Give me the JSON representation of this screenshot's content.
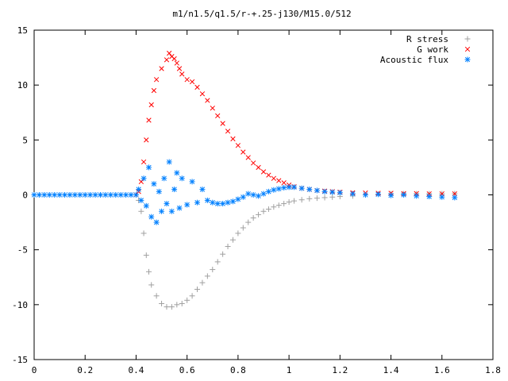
{
  "chart_data": {
    "type": "scatter",
    "title": "m1/n1.5/q1.5/r-+.25-j130/M15.0/512",
    "xlabel": "",
    "ylabel": "",
    "xlim": [
      0,
      1.8
    ],
    "ylim": [
      -15,
      15
    ],
    "xticks": [
      0,
      0.2,
      0.4,
      0.6,
      0.8,
      1,
      1.2,
      1.4,
      1.6,
      1.8
    ],
    "xtick_labels": [
      "0",
      "0.2",
      "0.4",
      "0.6",
      "0.8",
      "1",
      "1.2",
      "1.4",
      "1.6",
      "1.8"
    ],
    "yticks": [
      -15,
      -10,
      -5,
      0,
      5,
      10,
      15
    ],
    "ytick_labels": [
      "-15",
      "-10",
      "-5",
      "0",
      "5",
      "10",
      "15"
    ],
    "grid": false,
    "legend_position": "top-right",
    "series": [
      {
        "name": "R stress",
        "marker": "plus",
        "color": "#a0a0a0",
        "points": [
          [
            0.4,
            0.0
          ],
          [
            0.41,
            -0.5
          ],
          [
            0.42,
            -1.5
          ],
          [
            0.43,
            -3.5
          ],
          [
            0.44,
            -5.5
          ],
          [
            0.45,
            -7.0
          ],
          [
            0.46,
            -8.2
          ],
          [
            0.48,
            -9.2
          ],
          [
            0.5,
            -9.9
          ],
          [
            0.52,
            -10.2
          ],
          [
            0.54,
            -10.2
          ],
          [
            0.56,
            -10.0
          ],
          [
            0.58,
            -9.9
          ],
          [
            0.6,
            -9.6
          ],
          [
            0.62,
            -9.2
          ],
          [
            0.64,
            -8.6
          ],
          [
            0.66,
            -8.0
          ],
          [
            0.68,
            -7.4
          ],
          [
            0.7,
            -6.8
          ],
          [
            0.72,
            -6.1
          ],
          [
            0.74,
            -5.4
          ],
          [
            0.76,
            -4.7
          ],
          [
            0.78,
            -4.1
          ],
          [
            0.8,
            -3.5
          ],
          [
            0.82,
            -3.0
          ],
          [
            0.84,
            -2.5
          ],
          [
            0.86,
            -2.1
          ],
          [
            0.88,
            -1.8
          ],
          [
            0.9,
            -1.5
          ],
          [
            0.92,
            -1.3
          ],
          [
            0.94,
            -1.1
          ],
          [
            0.96,
            -0.95
          ],
          [
            0.98,
            -0.8
          ],
          [
            1.0,
            -0.65
          ],
          [
            1.02,
            -0.55
          ],
          [
            1.05,
            -0.45
          ],
          [
            1.08,
            -0.35
          ],
          [
            1.11,
            -0.3
          ],
          [
            1.14,
            -0.25
          ],
          [
            1.17,
            -0.2
          ],
          [
            1.2,
            -0.15
          ],
          [
            1.25,
            -0.1
          ],
          [
            1.3,
            0.0
          ],
          [
            1.35,
            0.05
          ],
          [
            1.4,
            0.1
          ],
          [
            1.45,
            0.1
          ],
          [
            1.5,
            0.1
          ],
          [
            1.55,
            0.1
          ],
          [
            1.6,
            0.1
          ],
          [
            1.65,
            0.1
          ]
        ]
      },
      {
        "name": "G work",
        "marker": "cross",
        "color": "#ff0000",
        "points": [
          [
            0.4,
            0.0
          ],
          [
            0.41,
            0.3
          ],
          [
            0.42,
            1.2
          ],
          [
            0.43,
            3.0
          ],
          [
            0.44,
            5.0
          ],
          [
            0.45,
            6.8
          ],
          [
            0.46,
            8.2
          ],
          [
            0.47,
            9.5
          ],
          [
            0.48,
            10.5
          ],
          [
            0.5,
            11.5
          ],
          [
            0.52,
            12.3
          ],
          [
            0.53,
            12.9
          ],
          [
            0.54,
            12.6
          ],
          [
            0.55,
            12.4
          ],
          [
            0.56,
            12.0
          ],
          [
            0.57,
            11.5
          ],
          [
            0.58,
            11.0
          ],
          [
            0.6,
            10.5
          ],
          [
            0.62,
            10.3
          ],
          [
            0.64,
            9.8
          ],
          [
            0.66,
            9.2
          ],
          [
            0.68,
            8.6
          ],
          [
            0.7,
            7.9
          ],
          [
            0.72,
            7.2
          ],
          [
            0.74,
            6.5
          ],
          [
            0.76,
            5.8
          ],
          [
            0.78,
            5.1
          ],
          [
            0.8,
            4.5
          ],
          [
            0.82,
            3.9
          ],
          [
            0.84,
            3.4
          ],
          [
            0.86,
            2.9
          ],
          [
            0.88,
            2.5
          ],
          [
            0.9,
            2.1
          ],
          [
            0.92,
            1.8
          ],
          [
            0.94,
            1.5
          ],
          [
            0.96,
            1.3
          ],
          [
            0.98,
            1.1
          ],
          [
            1.0,
            0.9
          ],
          [
            1.02,
            0.75
          ],
          [
            1.05,
            0.6
          ],
          [
            1.08,
            0.5
          ],
          [
            1.11,
            0.4
          ],
          [
            1.14,
            0.35
          ],
          [
            1.17,
            0.3
          ],
          [
            1.2,
            0.25
          ],
          [
            1.25,
            0.2
          ],
          [
            1.3,
            0.18
          ],
          [
            1.35,
            0.15
          ],
          [
            1.4,
            0.15
          ],
          [
            1.45,
            0.12
          ],
          [
            1.5,
            0.12
          ],
          [
            1.55,
            0.1
          ],
          [
            1.6,
            0.1
          ],
          [
            1.65,
            0.1
          ]
        ]
      },
      {
        "name": "Acoustic flux",
        "marker": "star",
        "color": "#0080ff",
        "points": [
          [
            0.0,
            0.0
          ],
          [
            0.02,
            0.0
          ],
          [
            0.04,
            0.0
          ],
          [
            0.06,
            0.0
          ],
          [
            0.08,
            0.0
          ],
          [
            0.1,
            0.0
          ],
          [
            0.12,
            0.0
          ],
          [
            0.14,
            0.0
          ],
          [
            0.16,
            0.0
          ],
          [
            0.18,
            0.0
          ],
          [
            0.2,
            0.0
          ],
          [
            0.22,
            0.0
          ],
          [
            0.24,
            0.0
          ],
          [
            0.26,
            0.0
          ],
          [
            0.28,
            0.0
          ],
          [
            0.3,
            0.0
          ],
          [
            0.32,
            0.0
          ],
          [
            0.34,
            0.0
          ],
          [
            0.36,
            0.0
          ],
          [
            0.38,
            0.0
          ],
          [
            0.4,
            0.0
          ],
          [
            0.41,
            0.5
          ],
          [
            0.42,
            -0.5
          ],
          [
            0.43,
            1.5
          ],
          [
            0.44,
            -1.0
          ],
          [
            0.45,
            2.5
          ],
          [
            0.46,
            -2.0
          ],
          [
            0.47,
            1.0
          ],
          [
            0.48,
            -2.5
          ],
          [
            0.49,
            0.3
          ],
          [
            0.5,
            -1.5
          ],
          [
            0.51,
            1.5
          ],
          [
            0.52,
            -0.8
          ],
          [
            0.53,
            3.0
          ],
          [
            0.54,
            -1.5
          ],
          [
            0.55,
            0.5
          ],
          [
            0.56,
            2.0
          ],
          [
            0.57,
            -1.2
          ],
          [
            0.58,
            1.5
          ],
          [
            0.6,
            -0.9
          ],
          [
            0.62,
            1.2
          ],
          [
            0.64,
            -0.7
          ],
          [
            0.66,
            0.5
          ],
          [
            0.68,
            -0.5
          ],
          [
            0.7,
            -0.7
          ],
          [
            0.72,
            -0.8
          ],
          [
            0.74,
            -0.8
          ],
          [
            0.76,
            -0.7
          ],
          [
            0.78,
            -0.6
          ],
          [
            0.8,
            -0.4
          ],
          [
            0.82,
            -0.2
          ],
          [
            0.84,
            0.1
          ],
          [
            0.86,
            0.0
          ],
          [
            0.88,
            -0.1
          ],
          [
            0.9,
            0.1
          ],
          [
            0.92,
            0.3
          ],
          [
            0.94,
            0.45
          ],
          [
            0.96,
            0.55
          ],
          [
            0.98,
            0.65
          ],
          [
            1.0,
            0.7
          ],
          [
            1.02,
            0.7
          ],
          [
            1.05,
            0.6
          ],
          [
            1.08,
            0.5
          ],
          [
            1.11,
            0.4
          ],
          [
            1.14,
            0.3
          ],
          [
            1.17,
            0.25
          ],
          [
            1.2,
            0.2
          ],
          [
            1.25,
            0.1
          ],
          [
            1.3,
            0.0
          ],
          [
            1.35,
            0.05
          ],
          [
            1.4,
            -0.05
          ],
          [
            1.45,
            0.0
          ],
          [
            1.5,
            -0.1
          ],
          [
            1.55,
            -0.15
          ],
          [
            1.6,
            -0.2
          ],
          [
            1.65,
            -0.25
          ]
        ]
      }
    ]
  }
}
